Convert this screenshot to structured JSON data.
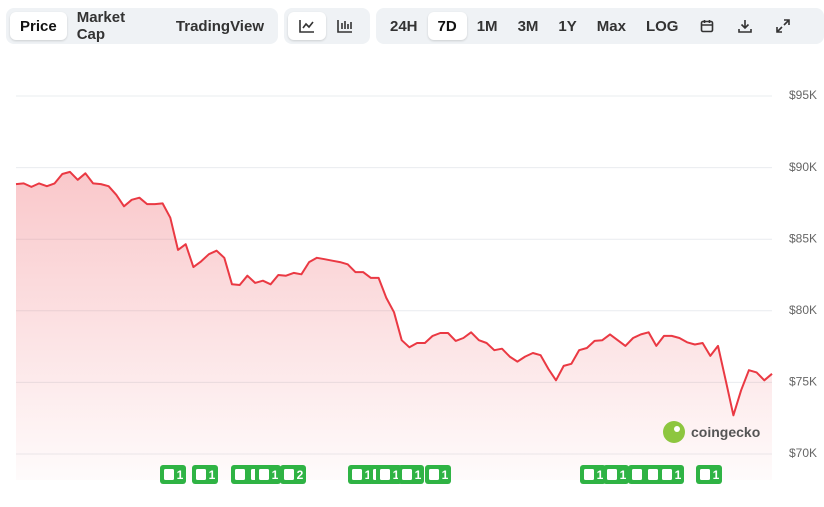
{
  "toolbar": {
    "views": [
      "Price",
      "Market Cap",
      "TradingView"
    ],
    "ranges": [
      "24H",
      "7D",
      "1M",
      "3M",
      "1Y",
      "Max",
      "LOG"
    ]
  },
  "watermark": "coingecko",
  "chart_data": {
    "type": "line",
    "color": "#ea3943",
    "values": [
      88850,
      88900,
      88650,
      88900,
      88700,
      88900,
      89550,
      89700,
      89150,
      89600,
      88900,
      88850,
      88700,
      88100,
      87300,
      87750,
      87900,
      87450,
      87450,
      87500,
      86500,
      84250,
      84650,
      83050,
      83450,
      83950,
      84200,
      83700,
      81850,
      81800,
      82450,
      81950,
      82100,
      81850,
      82500,
      82450,
      82650,
      82550,
      83400,
      83700,
      83600,
      83500,
      83400,
      83250,
      82700,
      82700,
      82300,
      82300,
      80900,
      79900,
      77950,
      77450,
      77750,
      77750,
      78250,
      78450,
      78450,
      77900,
      78100,
      78500,
      77950,
      77750,
      77250,
      77350,
      76800,
      76450,
      76800,
      77050,
      76900,
      75950,
      75150,
      76150,
      76300,
      77250,
      77400,
      77900,
      77950,
      78350,
      77950,
      77550,
      78100,
      78350,
      78500,
      77550,
      78250,
      78250,
      78100,
      77800,
      77650,
      77750,
      76850,
      77550,
      75150,
      72700,
      74450,
      75850,
      75700,
      75150,
      75600
    ],
    "ylim": [
      70000,
      95000
    ],
    "yticks": [
      {
        "value": 70000,
        "label": "$70K"
      },
      {
        "value": 75000,
        "label": "$75K"
      },
      {
        "value": 80000,
        "label": "$80K"
      },
      {
        "value": 85000,
        "label": "$85K"
      },
      {
        "value": 90000,
        "label": "$90K"
      },
      {
        "value": 95000,
        "label": "$95K"
      }
    ],
    "grid": true,
    "events": [
      "1",
      "1",
      "1",
      "1",
      "1",
      "2",
      "1",
      "1",
      "1",
      "1",
      "1",
      "1",
      "1",
      "1",
      "1",
      "1",
      "1"
    ]
  }
}
